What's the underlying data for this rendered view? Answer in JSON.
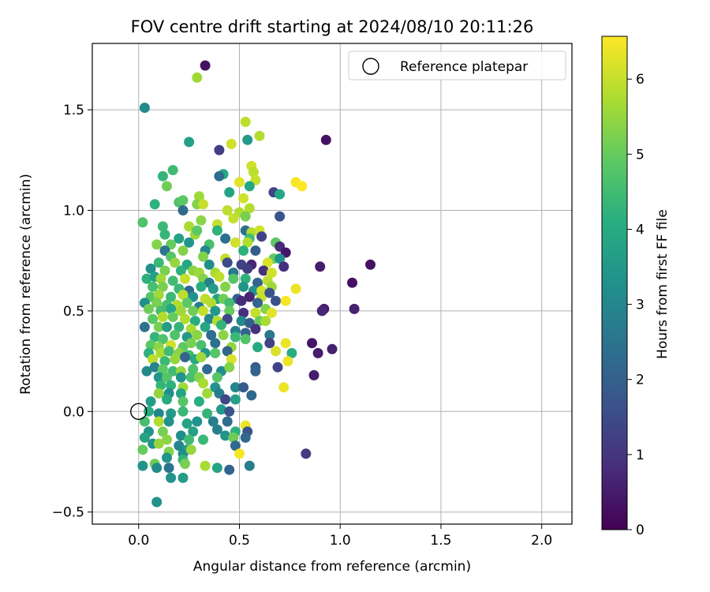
{
  "chart_data": {
    "type": "scatter",
    "title": "FOV centre drift starting at 2024/08/10 20:11:26",
    "xlabel": "Angular distance from reference (arcmin)",
    "ylabel": "Rotation from reference (arcmin)",
    "xlim": [
      -0.23,
      2.15
    ],
    "ylim": [
      -0.56,
      1.83
    ],
    "xticks": [
      0.0,
      0.5,
      1.0,
      1.5,
      2.0
    ],
    "xtick_labels": [
      "0.0",
      "0.5",
      "1.0",
      "1.5",
      "2.0"
    ],
    "yticks": [
      -0.5,
      0.0,
      0.5,
      1.0,
      1.5
    ],
    "ytick_labels": [
      "−0.5",
      "0.0",
      "0.5",
      "1.0",
      "1.5"
    ],
    "grid": true,
    "colormap": "viridis",
    "colorbar": {
      "label": "Hours from first FF file",
      "range": [
        0,
        6.57
      ],
      "ticks": [
        0,
        1,
        2,
        3,
        4,
        5,
        6
      ],
      "tick_labels": [
        "0",
        "1",
        "2",
        "3",
        "4",
        "5",
        "6"
      ]
    },
    "legend": {
      "position": "top-right",
      "entries": [
        "Reference platepar"
      ]
    },
    "reference_point": {
      "x": 0.0,
      "y": 0.0
    },
    "points": [
      [
        0.33,
        1.72,
        0.3
      ],
      [
        0.29,
        1.66,
        5.6
      ],
      [
        0.03,
        1.51,
        3.1
      ],
      [
        0.53,
        1.44,
        5.9
      ],
      [
        0.6,
        1.37,
        5.8
      ],
      [
        0.54,
        1.35,
        3.5
      ],
      [
        0.93,
        1.35,
        0.3
      ],
      [
        0.25,
        1.34,
        3.7
      ],
      [
        0.46,
        1.33,
        6.1
      ],
      [
        0.4,
        1.3,
        1.2
      ],
      [
        0.56,
        1.22,
        6.1
      ],
      [
        0.57,
        1.19,
        5.9
      ],
      [
        0.17,
        1.2,
        4.5
      ],
      [
        0.12,
        1.17,
        4.3
      ],
      [
        0.42,
        1.18,
        3.9
      ],
      [
        0.4,
        1.17,
        2.3
      ],
      [
        0.58,
        1.15,
        6
      ],
      [
        0.5,
        1.14,
        6.3
      ],
      [
        0.78,
        1.14,
        6.5
      ],
      [
        0.81,
        1.12,
        6.6
      ],
      [
        0.14,
        1.12,
        5.1
      ],
      [
        0.55,
        1.12,
        3.9
      ],
      [
        0.45,
        1.09,
        3.8
      ],
      [
        0.67,
        1.09,
        1.3
      ],
      [
        0.7,
        1.08,
        3.9
      ],
      [
        0.3,
        1.07,
        5.6
      ],
      [
        0.52,
        1.06,
        6.1
      ],
      [
        0.2,
        1.04,
        4.7
      ],
      [
        0.22,
        1.05,
        4.9
      ],
      [
        0.29,
        1.03,
        5.3
      ],
      [
        0.08,
        1.03,
        4.2
      ],
      [
        0.32,
        1.03,
        6
      ],
      [
        0.55,
        1.01,
        5.8
      ],
      [
        0.22,
        1,
        2.3
      ],
      [
        0.44,
        1,
        5.9
      ],
      [
        0.5,
        0.99,
        5.8
      ],
      [
        0.02,
        0.94,
        4.7
      ],
      [
        0.53,
        0.97,
        5.2
      ],
      [
        0.7,
        0.97,
        1.7
      ],
      [
        0.47,
        0.96,
        6
      ],
      [
        0.31,
        0.95,
        5.4
      ],
      [
        0.39,
        0.93,
        6
      ],
      [
        0.25,
        0.92,
        5.7
      ],
      [
        0.12,
        0.92,
        4.4
      ],
      [
        0.28,
        0.88,
        5.6
      ],
      [
        0.13,
        0.88,
        4.3
      ],
      [
        0.29,
        0.9,
        4.9
      ],
      [
        0.39,
        0.9,
        4.2
      ],
      [
        0.53,
        0.9,
        2.4
      ],
      [
        0.56,
        0.89,
        5.8
      ],
      [
        0.6,
        0.9,
        6.1
      ],
      [
        0.2,
        0.86,
        3.8
      ],
      [
        0.43,
        0.86,
        2.4
      ],
      [
        0.48,
        0.84,
        6.1
      ],
      [
        0.55,
        0.86,
        4.5
      ],
      [
        0.61,
        0.87,
        1.3
      ],
      [
        0.09,
        0.83,
        5.3
      ],
      [
        0.16,
        0.83,
        5
      ],
      [
        0.25,
        0.84,
        3.4
      ],
      [
        0.35,
        0.83,
        4.6
      ],
      [
        0.54,
        0.84,
        5.8
      ],
      [
        0.68,
        0.84,
        4.9
      ],
      [
        0.52,
        0.8,
        4.2
      ],
      [
        0.13,
        0.8,
        2.5
      ],
      [
        0.22,
        0.8,
        5.3
      ],
      [
        0.33,
        0.8,
        3
      ],
      [
        0.58,
        0.8,
        1.9
      ],
      [
        0.7,
        0.82,
        0.8
      ],
      [
        0.73,
        0.79,
        0.4
      ],
      [
        0.16,
        0.77,
        4.8
      ],
      [
        0.32,
        0.77,
        5.3
      ],
      [
        0.43,
        0.76,
        6
      ],
      [
        0.67,
        0.76,
        5
      ],
      [
        0.7,
        0.76,
        3.3
      ],
      [
        0.1,
        0.74,
        4.4
      ],
      [
        0.18,
        0.74,
        5.5
      ],
      [
        0.24,
        0.73,
        3.9
      ],
      [
        0.35,
        0.73,
        3.2
      ],
      [
        0.44,
        0.74,
        1.5
      ],
      [
        0.51,
        0.73,
        1.3
      ],
      [
        0.56,
        0.73,
        0.7
      ],
      [
        0.64,
        0.74,
        6.2
      ],
      [
        0.9,
        0.72,
        0.5
      ],
      [
        1.15,
        0.73,
        0.3
      ],
      [
        0.06,
        0.71,
        3.3
      ],
      [
        0.13,
        0.7,
        5.2
      ],
      [
        0.21,
        0.7,
        4.2
      ],
      [
        0.27,
        0.7,
        5.4
      ],
      [
        0.3,
        0.69,
        5.6
      ],
      [
        0.38,
        0.69,
        5.7
      ],
      [
        0.47,
        0.69,
        2.6
      ],
      [
        0.54,
        0.71,
        1.2
      ],
      [
        0.62,
        0.7,
        0.9
      ],
      [
        0.66,
        0.69,
        6.1
      ],
      [
        0.72,
        0.72,
        0.9
      ],
      [
        0.04,
        0.66,
        4.2
      ],
      [
        0.08,
        0.67,
        3.7
      ],
      [
        0.11,
        0.66,
        5.6
      ],
      [
        0.17,
        0.65,
        4.5
      ],
      [
        0.23,
        0.66,
        6
      ],
      [
        0.32,
        0.66,
        5.3
      ],
      [
        0.35,
        0.64,
        2.8
      ],
      [
        0.4,
        0.67,
        5.9
      ],
      [
        0.47,
        0.66,
        4.8
      ],
      [
        0.53,
        0.66,
        4.2
      ],
      [
        0.59,
        0.64,
        2.1
      ],
      [
        0.64,
        0.65,
        5.9
      ],
      [
        0.66,
        0.62,
        5.6
      ],
      [
        1.06,
        0.64,
        0.3
      ],
      [
        0.07,
        0.62,
        4.6
      ],
      [
        0.12,
        0.62,
        5.2
      ],
      [
        0.2,
        0.61,
        4.4
      ],
      [
        0.25,
        0.6,
        2.2
      ],
      [
        0.31,
        0.62,
        4.1
      ],
      [
        0.37,
        0.61,
        3.6
      ],
      [
        0.43,
        0.62,
        5.3
      ],
      [
        0.52,
        0.62,
        3.4
      ],
      [
        0.57,
        0.6,
        3.3
      ],
      [
        0.61,
        0.6,
        6.1
      ],
      [
        0.78,
        0.61,
        6.4
      ],
      [
        0.06,
        0.57,
        4.8
      ],
      [
        0.1,
        0.58,
        5.6
      ],
      [
        0.16,
        0.57,
        4.4
      ],
      [
        0.22,
        0.58,
        5.9
      ],
      [
        0.27,
        0.57,
        3.3
      ],
      [
        0.33,
        0.56,
        5.9
      ],
      [
        0.39,
        0.56,
        3.8
      ],
      [
        0.42,
        0.56,
        5.1
      ],
      [
        0.49,
        0.56,
        2
      ],
      [
        0.55,
        0.57,
        0.7
      ],
      [
        0.61,
        0.57,
        6
      ],
      [
        0.65,
        0.59,
        1.7
      ],
      [
        0.03,
        0.54,
        3.2
      ],
      [
        0.09,
        0.54,
        5.2
      ],
      [
        0.14,
        0.53,
        4.6
      ],
      [
        0.19,
        0.53,
        5.8
      ],
      [
        0.24,
        0.54,
        4.9
      ],
      [
        0.3,
        0.52,
        2.8
      ],
      [
        0.36,
        0.54,
        5.8
      ],
      [
        0.45,
        0.54,
        4.5
      ],
      [
        0.51,
        0.55,
        0.8
      ],
      [
        0.59,
        0.54,
        2.1
      ],
      [
        0.68,
        0.55,
        1.6
      ],
      [
        0.73,
        0.55,
        6.5
      ],
      [
        0.05,
        0.51,
        5.1
      ],
      [
        0.11,
        0.5,
        4.6
      ],
      [
        0.16,
        0.51,
        3.9
      ],
      [
        0.21,
        0.5,
        5.6
      ],
      [
        0.27,
        0.5,
        5.1
      ],
      [
        0.32,
        0.5,
        6
      ],
      [
        0.38,
        0.5,
        3.5
      ],
      [
        0.45,
        0.5,
        5
      ],
      [
        0.52,
        0.49,
        0.9
      ],
      [
        0.58,
        0.49,
        6
      ],
      [
        0.63,
        0.51,
        5.3
      ],
      [
        0.66,
        0.49,
        6.3
      ],
      [
        0.92,
        0.51,
        0.5
      ],
      [
        0.91,
        0.5,
        0.7
      ],
      [
        1.07,
        0.51,
        0.6
      ],
      [
        0.07,
        0.46,
        4.9
      ],
      [
        0.12,
        0.47,
        5.8
      ],
      [
        0.17,
        0.47,
        5
      ],
      [
        0.23,
        0.46,
        5.8
      ],
      [
        0.28,
        0.45,
        4.1
      ],
      [
        0.35,
        0.46,
        3
      ],
      [
        0.39,
        0.45,
        5.8
      ],
      [
        0.44,
        0.46,
        1.4
      ],
      [
        0.51,
        0.45,
        3.1
      ],
      [
        0.55,
        0.44,
        2
      ],
      [
        0.6,
        0.45,
        5
      ],
      [
        0.63,
        0.45,
        5.7
      ],
      [
        0.03,
        0.42,
        2.5
      ],
      [
        0.1,
        0.42,
        5.2
      ],
      [
        0.14,
        0.42,
        3.6
      ],
      [
        0.2,
        0.42,
        4.3
      ],
      [
        0.26,
        0.41,
        5.7
      ],
      [
        0.33,
        0.42,
        3.9
      ],
      [
        0.41,
        0.43,
        4.3
      ],
      [
        0.48,
        0.4,
        2.8
      ],
      [
        0.53,
        0.39,
        2.1
      ],
      [
        0.58,
        0.41,
        0.9
      ],
      [
        0.08,
        0.37,
        4.3
      ],
      [
        0.12,
        0.36,
        4.7
      ],
      [
        0.18,
        0.38,
        4.7
      ],
      [
        0.24,
        0.37,
        3.5
      ],
      [
        0.29,
        0.38,
        5.4
      ],
      [
        0.36,
        0.38,
        2.3
      ],
      [
        0.42,
        0.38,
        5.4
      ],
      [
        0.48,
        0.37,
        4.4
      ],
      [
        0.53,
        0.36,
        4.7
      ],
      [
        0.65,
        0.38,
        2.6
      ],
      [
        0.06,
        0.33,
        4.9
      ],
      [
        0.1,
        0.32,
        5.4
      ],
      [
        0.16,
        0.33,
        6.1
      ],
      [
        0.22,
        0.32,
        4.9
      ],
      [
        0.26,
        0.34,
        5.2
      ],
      [
        0.31,
        0.33,
        4.6
      ],
      [
        0.38,
        0.34,
        2.4
      ],
      [
        0.46,
        0.32,
        5.5
      ],
      [
        0.59,
        0.32,
        4
      ],
      [
        0.65,
        0.34,
        1.3
      ],
      [
        0.68,
        0.3,
        6.2
      ],
      [
        0.73,
        0.34,
        6.4
      ],
      [
        0.86,
        0.34,
        0.4
      ],
      [
        0.96,
        0.31,
        0.6
      ],
      [
        0.05,
        0.29,
        4.2
      ],
      [
        0.11,
        0.29,
        5.7
      ],
      [
        0.15,
        0.3,
        4.5
      ],
      [
        0.2,
        0.29,
        5.4
      ],
      [
        0.25,
        0.28,
        4.5
      ],
      [
        0.33,
        0.29,
        3.5
      ],
      [
        0.38,
        0.29,
        4.8
      ],
      [
        0.44,
        0.3,
        2.1
      ],
      [
        0.76,
        0.29,
        4.1
      ],
      [
        0.89,
        0.29,
        0.5
      ],
      [
        0.07,
        0.26,
        5.9
      ],
      [
        0.13,
        0.25,
        4.4
      ],
      [
        0.18,
        0.26,
        5.5
      ],
      [
        0.23,
        0.27,
        2.1
      ],
      [
        0.28,
        0.26,
        4
      ],
      [
        0.31,
        0.27,
        5.6
      ],
      [
        0.46,
        0.26,
        6.2
      ],
      [
        0.74,
        0.25,
        6.4
      ],
      [
        0.04,
        0.2,
        3.1
      ],
      [
        0.08,
        0.22,
        2.9
      ],
      [
        0.12,
        0.21,
        4.9
      ],
      [
        0.17,
        0.2,
        4.5
      ],
      [
        0.21,
        0.2,
        5.5
      ],
      [
        0.27,
        0.21,
        4.7
      ],
      [
        0.34,
        0.21,
        2.2
      ],
      [
        0.41,
        0.2,
        3.2
      ],
      [
        0.45,
        0.22,
        5.3
      ],
      [
        0.58,
        0.22,
        1.9
      ],
      [
        0.69,
        0.22,
        1.3
      ],
      [
        0.1,
        0.17,
        3.4
      ],
      [
        0.14,
        0.17,
        4.8
      ],
      [
        0.21,
        0.17,
        3.3
      ],
      [
        0.26,
        0.17,
        4.6
      ],
      [
        0.3,
        0.17,
        5.3
      ],
      [
        0.39,
        0.17,
        4.8
      ],
      [
        0.58,
        0.2,
        2.1
      ],
      [
        0.87,
        0.18,
        0.5
      ],
      [
        0.72,
        0.12,
        6.4
      ],
      [
        0.11,
        0.13,
        4.3
      ],
      [
        0.16,
        0.13,
        4.2
      ],
      [
        0.22,
        0.12,
        5.6
      ],
      [
        0.32,
        0.14,
        5.7
      ],
      [
        0.38,
        0.12,
        3.3
      ],
      [
        0.48,
        0.12,
        3
      ],
      [
        0.52,
        0.12,
        1.9
      ],
      [
        0.1,
        0.09,
        5.5
      ],
      [
        0.15,
        0.09,
        3.2
      ],
      [
        0.21,
        0.09,
        3.8
      ],
      [
        0.34,
        0.09,
        5.6
      ],
      [
        0.4,
        0.09,
        2.8
      ],
      [
        0.56,
        0.08,
        2.2
      ],
      [
        0.06,
        0.05,
        3.6
      ],
      [
        0.14,
        0.06,
        4
      ],
      [
        0.22,
        0.05,
        4.8
      ],
      [
        0.3,
        0.05,
        4.1
      ],
      [
        0.43,
        0.06,
        1.4
      ],
      [
        0.48,
        0.06,
        3.7
      ],
      [
        0.05,
        0,
        4.1
      ],
      [
        0.1,
        -0.01,
        3
      ],
      [
        0.16,
        -0.01,
        3.5
      ],
      [
        0.22,
        0,
        4.4
      ],
      [
        0.34,
        -0.01,
        4.3
      ],
      [
        0.41,
        0.01,
        3.5
      ],
      [
        0.45,
        0,
        1.7
      ],
      [
        0.03,
        -0.05,
        4.6
      ],
      [
        0.1,
        -0.05,
        5.8
      ],
      [
        0.15,
        -0.05,
        3.3
      ],
      [
        0.24,
        -0.06,
        3.8
      ],
      [
        0.29,
        -0.05,
        3.3
      ],
      [
        0.37,
        -0.05,
        2.8
      ],
      [
        0.44,
        -0.05,
        2.3
      ],
      [
        0.53,
        -0.07,
        6.4
      ],
      [
        0.05,
        -0.1,
        3.4
      ],
      [
        0.12,
        -0.1,
        5.2
      ],
      [
        0.21,
        -0.12,
        3.2
      ],
      [
        0.27,
        -0.1,
        3.7
      ],
      [
        0.39,
        -0.09,
        2.8
      ],
      [
        0.48,
        -0.1,
        4.2
      ],
      [
        0.54,
        -0.1,
        1.7
      ],
      [
        0.03,
        -0.13,
        3.8
      ],
      [
        0.14,
        -0.14,
        5.4
      ],
      [
        0.25,
        -0.14,
        4.5
      ],
      [
        0.32,
        -0.14,
        4.4
      ],
      [
        0.43,
        -0.12,
        3.4
      ],
      [
        0.47,
        -0.13,
        5.1
      ],
      [
        0.53,
        -0.13,
        2.2
      ],
      [
        0.07,
        -0.16,
        3.3
      ],
      [
        0.1,
        -0.16,
        5.5
      ],
      [
        0.2,
        -0.17,
        3
      ],
      [
        0.24,
        -0.19,
        3.6
      ],
      [
        0.48,
        -0.17,
        2.2
      ],
      [
        0.02,
        -0.19,
        5
      ],
      [
        0.15,
        -0.2,
        5.3
      ],
      [
        0.22,
        -0.21,
        3.2
      ],
      [
        0.26,
        -0.19,
        5.5
      ],
      [
        0.5,
        -0.21,
        6.5
      ],
      [
        0.83,
        -0.21,
        1.1
      ],
      [
        0.14,
        -0.23,
        3.4
      ],
      [
        0.22,
        -0.24,
        4.3
      ],
      [
        0.08,
        -0.26,
        5.1
      ],
      [
        0.23,
        -0.26,
        5.2
      ],
      [
        0.33,
        -0.27,
        5.7
      ],
      [
        0.02,
        -0.27,
        3.4
      ],
      [
        0.09,
        -0.28,
        3.1
      ],
      [
        0.15,
        -0.28,
        2.5
      ],
      [
        0.39,
        -0.28,
        3.8
      ],
      [
        0.45,
        -0.29,
        2.1
      ],
      [
        0.55,
        -0.27,
        2.8
      ],
      [
        0.16,
        -0.33,
        3.3
      ],
      [
        0.22,
        -0.33,
        3.6
      ],
      [
        0.09,
        -0.45,
        3.3
      ]
    ]
  }
}
